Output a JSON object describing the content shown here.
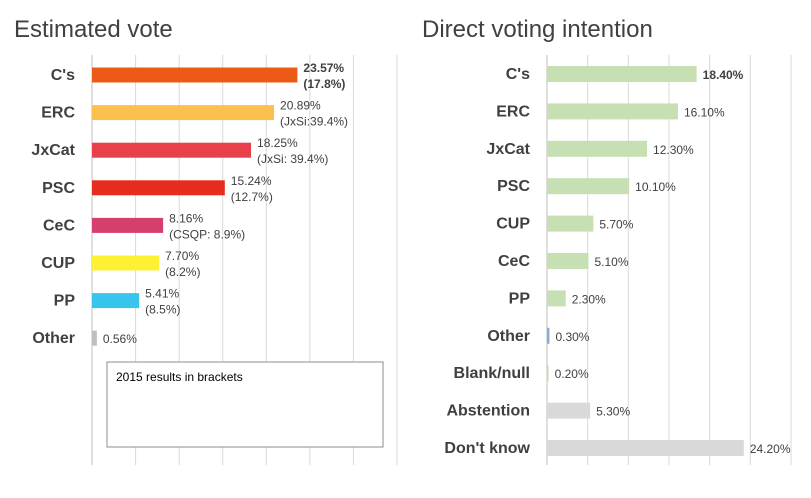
{
  "chart_data": [
    {
      "type": "bar",
      "orientation": "horizontal",
      "title": "Estimated vote",
      "categories": [
        "C's",
        "ERC",
        "JxCat",
        "PSC",
        "CeC",
        "CUP",
        "PP",
        "Other"
      ],
      "values": [
        23.57,
        20.89,
        18.25,
        15.24,
        8.16,
        7.7,
        5.41,
        0.56
      ],
      "labels": [
        "23.57%",
        "20.89%",
        "18.25%",
        "15.24%",
        "8.16%",
        "7.70%",
        "5.41%",
        "0.56%"
      ],
      "sublabels": [
        "(17.8%)",
        "(JxSi:39.4%)",
        "(JxSi: 39.4%)",
        "(12.7%)",
        "(CSQP: 8.9%)",
        "(8.2%)",
        "(8.5%)",
        ""
      ],
      "label_bold": [
        true,
        false,
        false,
        false,
        false,
        false,
        false,
        false
      ],
      "colors": [
        "#eb5a16",
        "#fbc04e",
        "#e8404a",
        "#e62c1e",
        "#d43f6e",
        "#fef033",
        "#37c5ed",
        "#bfbfbf"
      ],
      "xlim": [
        0,
        35
      ],
      "grid": true,
      "note": "2015  results in brackets"
    },
    {
      "type": "bar",
      "orientation": "horizontal",
      "title": "Direct voting intention",
      "categories": [
        "C's",
        "ERC",
        "JxCat",
        "PSC",
        "CUP",
        "CeC",
        "PP",
        "Other",
        "Blank/null",
        "Abstention",
        "Don't know"
      ],
      "values": [
        18.4,
        16.1,
        12.3,
        10.1,
        5.7,
        5.1,
        2.3,
        0.3,
        0.2,
        5.3,
        24.2
      ],
      "labels": [
        "18.40%",
        "16.10%",
        "12.30%",
        "10.10%",
        "5.70%",
        "5.10%",
        "2.30%",
        "0.30%",
        "0.20%",
        "5.30%",
        "24.20%"
      ],
      "label_bold": [
        true,
        false,
        false,
        false,
        false,
        false,
        false,
        false,
        false,
        false,
        false
      ],
      "colors": [
        "#c6e0b4",
        "#c6e0b4",
        "#c6e0b4",
        "#c6e0b4",
        "#c6e0b4",
        "#c6e0b4",
        "#c6e0b4",
        "#8ea9db",
        "#c6e0b4",
        "#d9d9d9",
        "#d9d9d9"
      ],
      "xlim": [
        0,
        30
      ],
      "grid": true
    }
  ]
}
